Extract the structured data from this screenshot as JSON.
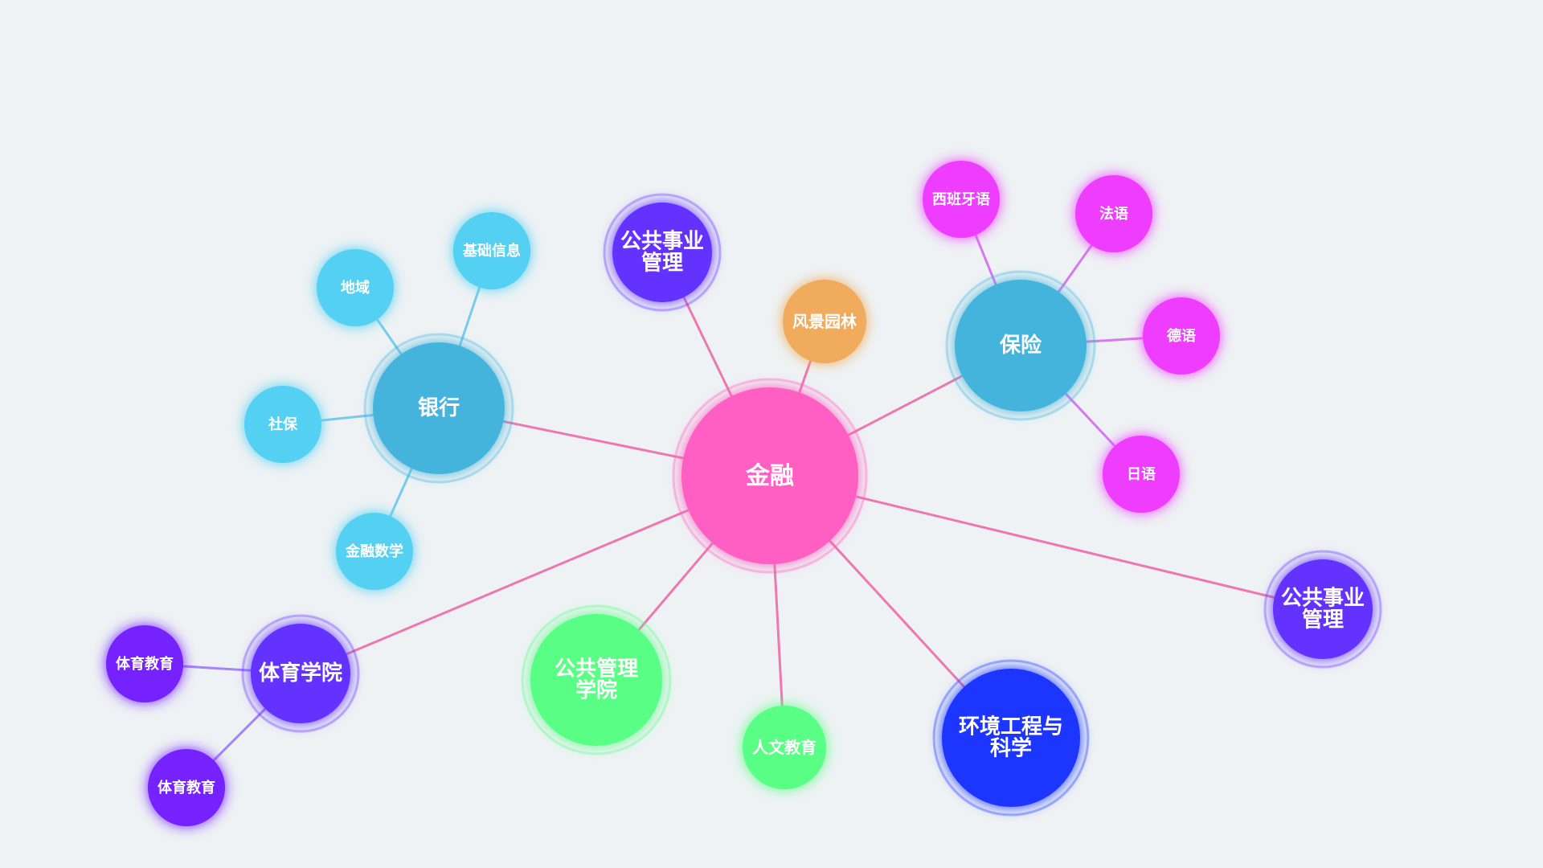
{
  "graph": {
    "nodes": [
      {
        "id": "jinrong",
        "label": "金融",
        "color": "#ff5ec2",
        "level": "root"
      },
      {
        "id": "yinhang",
        "label": "银行",
        "color": "#45b4dc",
        "level": "hub"
      },
      {
        "id": "baoxian",
        "label": "保险",
        "color": "#45b4dc",
        "level": "hub"
      },
      {
        "id": "tiyuxueyuan",
        "label": "体育学院",
        "color": "#6430ff",
        "level": "hub"
      },
      {
        "id": "gonggong1",
        "label": "公共事业\n管理",
        "color": "#6430ff",
        "level": "hub"
      },
      {
        "id": "gonggong2",
        "label": "公共事业\n管理",
        "color": "#6430ff",
        "level": "hub"
      },
      {
        "id": "fengjing",
        "label": "风景园林",
        "color": "#f0ab5c",
        "level": "leaf"
      },
      {
        "id": "gongguan",
        "label": "公共管理\n学院",
        "color": "#58ff84",
        "level": "hub"
      },
      {
        "id": "renwen",
        "label": "人文教育",
        "color": "#58ff84",
        "level": "leaf"
      },
      {
        "id": "huanjing",
        "label": "环境工程与\n科学",
        "color": "#1e36ff",
        "level": "hub"
      },
      {
        "id": "diyu",
        "label": "地域",
        "color": "#52d0f2",
        "level": "small"
      },
      {
        "id": "jichu",
        "label": "基础信息",
        "color": "#52d0f2",
        "level": "small"
      },
      {
        "id": "shebao",
        "label": "社保",
        "color": "#52d0f2",
        "level": "small"
      },
      {
        "id": "jinrongshuxue",
        "label": "金融数学",
        "color": "#52d0f2",
        "level": "small"
      },
      {
        "id": "xibanya",
        "label": "西班牙语",
        "color": "#ee3cff",
        "level": "small"
      },
      {
        "id": "fayu",
        "label": "法语",
        "color": "#ee3cff",
        "level": "small"
      },
      {
        "id": "deyu",
        "label": "德语",
        "color": "#ee3cff",
        "level": "small"
      },
      {
        "id": "riyu",
        "label": "日语",
        "color": "#ee3cff",
        "level": "small"
      },
      {
        "id": "tiyujiaoyu1",
        "label": "体育教育",
        "color": "#7420ff",
        "level": "small"
      },
      {
        "id": "tiyujiaoyu2",
        "label": "体育教育",
        "color": "#7420ff",
        "level": "small"
      }
    ],
    "edges": [
      {
        "from": "jinrong",
        "to": "yinhang",
        "color": "#ec6aa6"
      },
      {
        "from": "jinrong",
        "to": "gonggong1",
        "color": "#ec6aa6"
      },
      {
        "from": "jinrong",
        "to": "fengjing",
        "color": "#ec6aa6"
      },
      {
        "from": "jinrong",
        "to": "baoxian",
        "color": "#ec6aa6"
      },
      {
        "from": "jinrong",
        "to": "gonggong2",
        "color": "#ec6aa6"
      },
      {
        "from": "jinrong",
        "to": "huanjing",
        "color": "#ec6aa6"
      },
      {
        "from": "jinrong",
        "to": "renwen",
        "color": "#ec6aa6"
      },
      {
        "from": "jinrong",
        "to": "gongguan",
        "color": "#ec6aa6"
      },
      {
        "from": "jinrong",
        "to": "tiyuxueyuan",
        "color": "#ec6aa6"
      },
      {
        "from": "yinhang",
        "to": "diyu",
        "color": "#6cc6ea"
      },
      {
        "from": "yinhang",
        "to": "jichu",
        "color": "#6cc6ea"
      },
      {
        "from": "yinhang",
        "to": "shebao",
        "color": "#6cc6ea"
      },
      {
        "from": "yinhang",
        "to": "jinrongshuxue",
        "color": "#6cc6ea"
      },
      {
        "from": "baoxian",
        "to": "xibanya",
        "color": "#d36cf0"
      },
      {
        "from": "baoxian",
        "to": "fayu",
        "color": "#d36cf0"
      },
      {
        "from": "baoxian",
        "to": "deyu",
        "color": "#d36cf0"
      },
      {
        "from": "baoxian",
        "to": "riyu",
        "color": "#d36cf0"
      },
      {
        "from": "tiyuxueyuan",
        "to": "tiyujiaoyu1",
        "color": "#9a78ff"
      },
      {
        "from": "tiyuxueyuan",
        "to": "tiyujiaoyu2",
        "color": "#9a78ff"
      }
    ]
  }
}
